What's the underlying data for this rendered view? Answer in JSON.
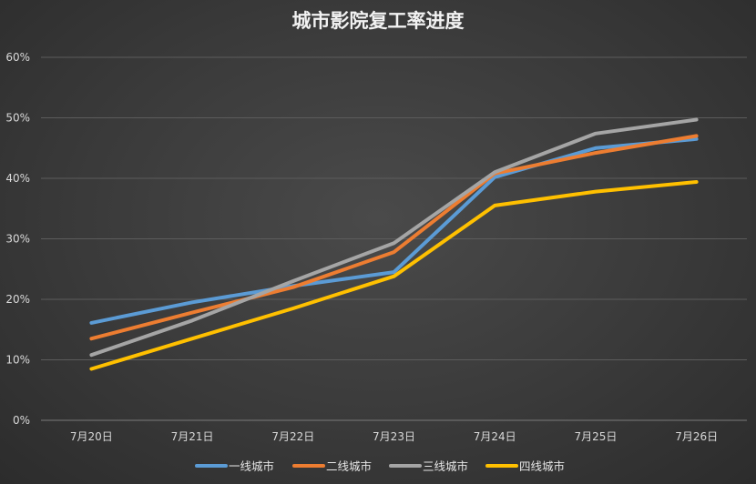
{
  "chart_data": {
    "type": "line",
    "title": "城市影院复工率进度",
    "xlabel": "",
    "ylabel": "",
    "categories": [
      "7月20日",
      "7月21日",
      "7月22日",
      "7月23日",
      "7月24日",
      "7月25日",
      "7月26日"
    ],
    "y_ticks": [
      "0%",
      "10%",
      "20%",
      "30%",
      "40%",
      "50%",
      "60%"
    ],
    "ylim": [
      0,
      60
    ],
    "grid": true,
    "legend_position": "bottom",
    "series": [
      {
        "name": "一线城市",
        "color": "#5b9bd5",
        "values": [
          16.1,
          19.5,
          22.2,
          24.5,
          40.2,
          45.0,
          46.5
        ]
      },
      {
        "name": "二线城市",
        "color": "#ed7d31",
        "values": [
          13.5,
          17.8,
          22.0,
          27.8,
          40.8,
          44.2,
          47.0
        ]
      },
      {
        "name": "三线城市",
        "color": "#a5a5a5",
        "values": [
          10.8,
          16.5,
          23.0,
          29.3,
          41.0,
          47.4,
          49.7
        ]
      },
      {
        "name": "四线城市",
        "color": "#ffc000",
        "values": [
          8.5,
          13.5,
          18.5,
          23.8,
          35.5,
          37.8,
          39.4
        ]
      }
    ]
  }
}
